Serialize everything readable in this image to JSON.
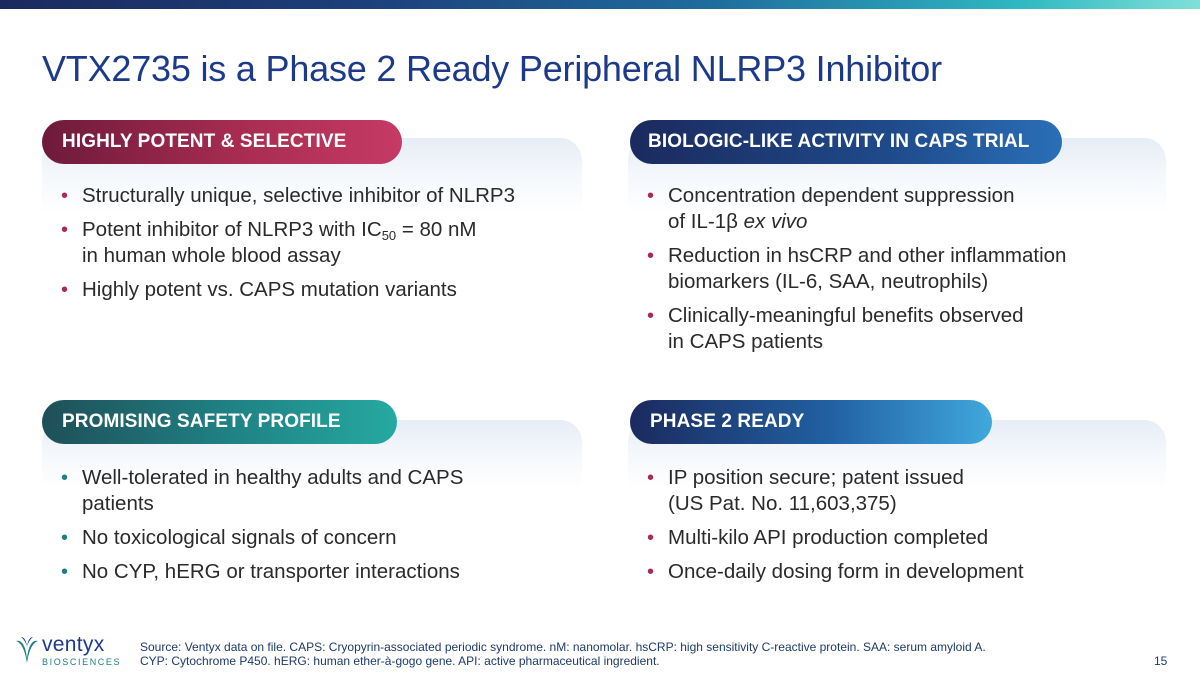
{
  "title": "VTX2735 is a Phase 2 Ready Peripheral NLRP3 Inhibitor",
  "colors": {
    "title_blue": "#1d3a8a",
    "pill_red": "#a82c52",
    "pill_navy": "#1f4a8a",
    "pill_teal": "#1f7f82",
    "pill_blue": "#40a8dc"
  },
  "sections": {
    "potent": {
      "heading": "HIGHLY POTENT & SELECTIVE",
      "b1": "Structurally unique, selective inhibitor of NLRP3",
      "b2_pre": "Potent inhibitor of NLRP3 with IC",
      "b2_sub": "50",
      "b2_post": " = 80 nM",
      "b2_line2": "in human whole blood assay",
      "b3": "Highly potent vs. CAPS mutation variants"
    },
    "biologic": {
      "heading": "BIOLOGIC-LIKE ACTIVITY IN CAPS TRIAL",
      "b1_line1": "Concentration dependent suppression",
      "b1_line2_pre": "of IL-1β ",
      "b1_line2_em": "ex vivo",
      "b2_line1": "Reduction in hsCRP and other inflammation",
      "b2_line2": "biomarkers (IL-6, SAA, neutrophils)",
      "b3_line1": "Clinically-meaningful benefits observed",
      "b3_line2": "in CAPS patients"
    },
    "safety": {
      "heading": "PROMISING SAFETY PROFILE",
      "b1_line1": "Well-tolerated in healthy adults and CAPS",
      "b1_line2": "patients",
      "b2": "No toxicological signals of concern",
      "b3": "No CYP, hERG or transporter interactions"
    },
    "phase2": {
      "heading": "PHASE 2 READY",
      "b1_line1": "IP position secure; patent issued",
      "b1_line2": "(US Pat. No. 11,603,375)",
      "b2": "Multi-kilo API production completed",
      "b3": "Once-daily dosing form in development"
    }
  },
  "logo": {
    "word": "ventyx",
    "sub": "BIOSCIENCES"
  },
  "footnote": "Source: Ventyx data on file. CAPS: Cryopyrin-associated periodic syndrome. nM: nanomolar. hsCRP: high sensitivity C-reactive protein. SAA: serum amyloid A. CYP: Cytochrome P450. hERG: human ether-à-gogo gene. API: active pharmaceutical ingredient.",
  "page_number": "15"
}
